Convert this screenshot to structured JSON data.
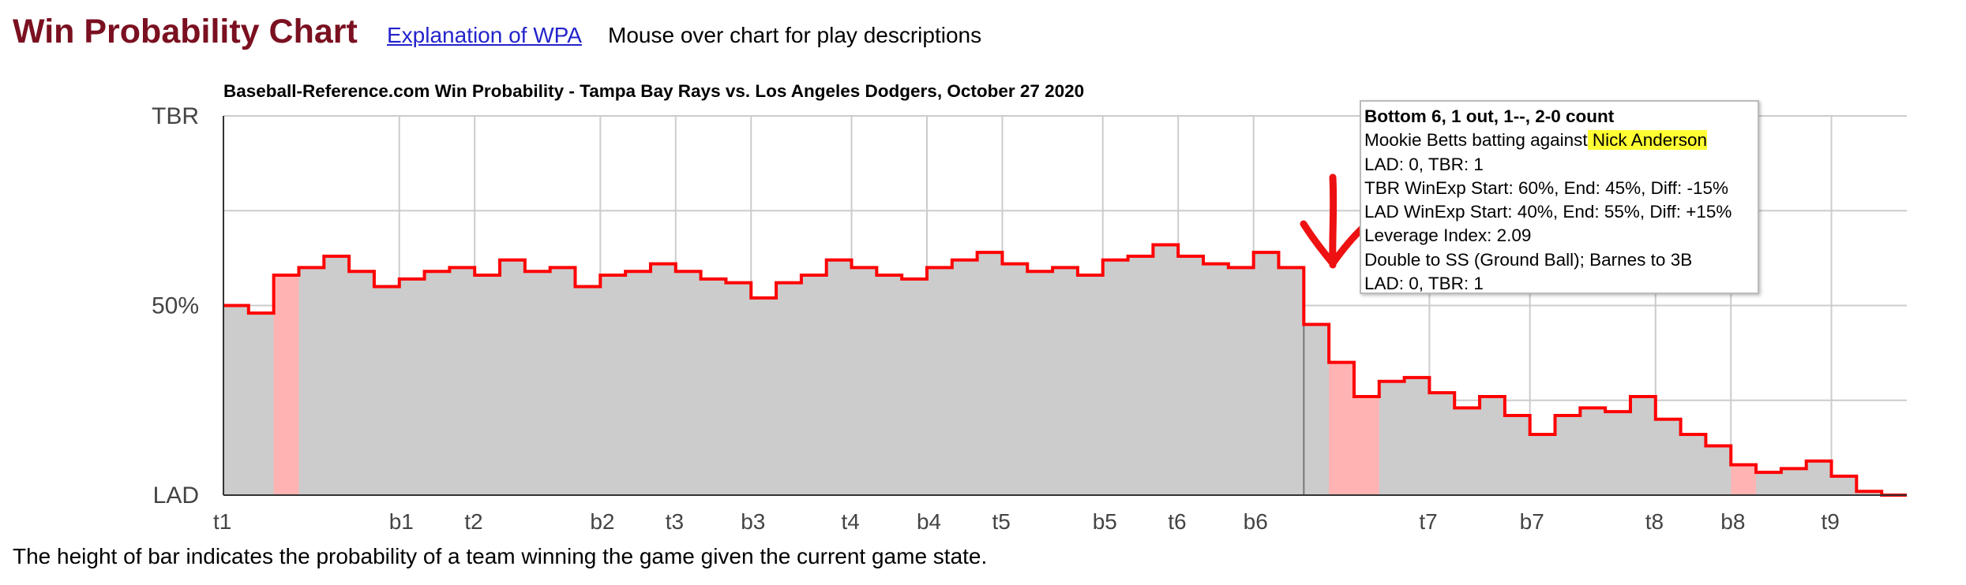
{
  "header": {
    "title": "Win Probability Chart",
    "link_label": "Explanation of WPA",
    "hint": "Mouse over chart for play descriptions"
  },
  "footnote": "The height of bar indicates the probability of a team winning the game given the current game state.",
  "colors": {
    "title": "#7a1020",
    "fill": "#cccccc",
    "line": "#ff0000",
    "highlight": "#ffb3b3",
    "annotation_arrow": "#ee1111"
  },
  "tooltip": {
    "title": "Bottom 6, 1 out, 1--, 2-0 count",
    "matchup_prefix": "Mookie Betts batting against",
    "pitcher": " Nick Anderson",
    "score": "LAD: 0, TBR: 1",
    "tbr_winexp": "TBR WinExp Start: 60%, End: 45%, Diff: -15%",
    "lad_winexp": "LAD WinExp Start: 40%, End: 55%, Diff: +15%",
    "leverage": "Leverage Index: 2.09",
    "play": "Double to SS (Ground Ball); Barnes to 3B",
    "score_after": "LAD: 0, TBR: 1"
  },
  "chart_data": {
    "type": "area",
    "title": "Baseball-Reference.com Win Probability - Tampa Bay Rays vs. Los Angeles Dodgers, October 27 2020",
    "y_tick_labels": [
      "TBR",
      "50%",
      "LAD"
    ],
    "ylim": [
      0,
      100
    ],
    "ylabel_meaning": "TBR win probability (%)",
    "x_tick_labels": [
      "t1",
      "b1",
      "t2",
      "b2",
      "t3",
      "b3",
      "t4",
      "b4",
      "t5",
      "b5",
      "t6",
      "b6",
      "t7",
      "b7",
      "t8",
      "b8",
      "t9"
    ],
    "x_tick_positions": [
      0,
      7,
      10,
      15,
      18,
      21,
      25,
      28,
      31,
      35,
      38,
      41,
      48,
      52,
      57,
      60,
      64
    ],
    "values": [
      50,
      48,
      58,
      60,
      63,
      59,
      55,
      57,
      59,
      60,
      58,
      62,
      59,
      60,
      55,
      58,
      59,
      61,
      59,
      57,
      56,
      52,
      56,
      58,
      62,
      60,
      58,
      57,
      60,
      62,
      64,
      61,
      59,
      60,
      58,
      62,
      63,
      66,
      63,
      61,
      60,
      64,
      60,
      45,
      35,
      26,
      30,
      31,
      27,
      23,
      26,
      21,
      16,
      21,
      23,
      22,
      26,
      20,
      16,
      13,
      8,
      6,
      7,
      9,
      5,
      1,
      0
    ],
    "highlight_ranges": [
      [
        2,
        3
      ],
      [
        44,
        46
      ],
      [
        60,
        61
      ]
    ],
    "hovered_event_index": 42,
    "grid": true,
    "legend": "none"
  }
}
